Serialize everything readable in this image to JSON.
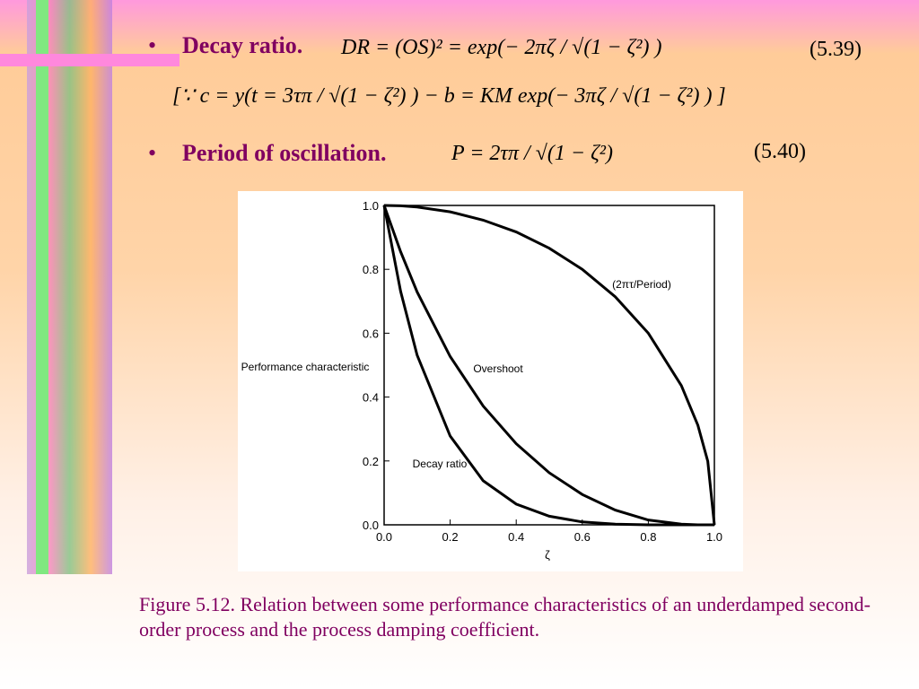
{
  "slide": {
    "bullet1": {
      "label": "Decay ratio.",
      "equation": "DR = (OS)² = exp(− 2πζ / √(1 − ζ²) )",
      "number": "(5.39)"
    },
    "note": "[∵ c = y(t = 3τπ / √(1 − ζ²) ) − b = KM exp(− 3πζ / √(1 − ζ²) ) ]",
    "bullet2": {
      "label": "Period of oscillation.",
      "equation": "P = 2τπ / √(1 − ζ²)",
      "number": "(5.40)"
    },
    "caption": "Figure 5.12. Relation between some performance characteristics of an underdamped second-order process and the process damping coefficient."
  },
  "chart_data": {
    "type": "line",
    "y_label": "Performance characteristic",
    "x_label": "ζ",
    "x": [
      0,
      0.05,
      0.1,
      0.2,
      0.3,
      0.4,
      0.5,
      0.6,
      0.7,
      0.8,
      0.9,
      0.95,
      0.98,
      1
    ],
    "series": [
      {
        "name": "(2πτ/Period)",
        "color": "#000000",
        "values": [
          1,
          0.999,
          0.995,
          0.98,
          0.954,
          0.917,
          0.866,
          0.8,
          0.714,
          0.6,
          0.436,
          0.312,
          0.199,
          0
        ]
      },
      {
        "name": "Overshoot",
        "color": "#000000",
        "values": [
          1,
          0.855,
          0.729,
          0.527,
          0.372,
          0.254,
          0.163,
          0.095,
          0.046,
          0.015,
          0.002,
          0,
          0,
          0
        ]
      },
      {
        "name": "Decay ratio",
        "color": "#000000",
        "values": [
          1,
          0.731,
          0.531,
          0.278,
          0.138,
          0.065,
          0.027,
          0.009,
          0.002,
          0,
          0,
          0,
          0,
          0
        ]
      }
    ],
    "xlim": [
      0,
      1
    ],
    "ylim": [
      0,
      1
    ],
    "xticks": [
      {
        "value": 0,
        "label": "0.0"
      },
      {
        "value": 0.2,
        "label": "0.2"
      },
      {
        "value": 0.4,
        "label": "0.4"
      },
      {
        "value": 0.6,
        "label": "0.6"
      },
      {
        "value": 0.8,
        "label": "0.8"
      },
      {
        "value": 1,
        "label": "1.0"
      }
    ],
    "yticks": [
      {
        "value": 0,
        "label": "0.0"
      },
      {
        "value": 0.2,
        "label": "0.2"
      },
      {
        "value": 0.4,
        "label": "0.4"
      },
      {
        "value": 0.6,
        "label": "0.6"
      },
      {
        "value": 0.8,
        "label": "0.8"
      },
      {
        "value": 1,
        "label": "1.0"
      }
    ]
  }
}
